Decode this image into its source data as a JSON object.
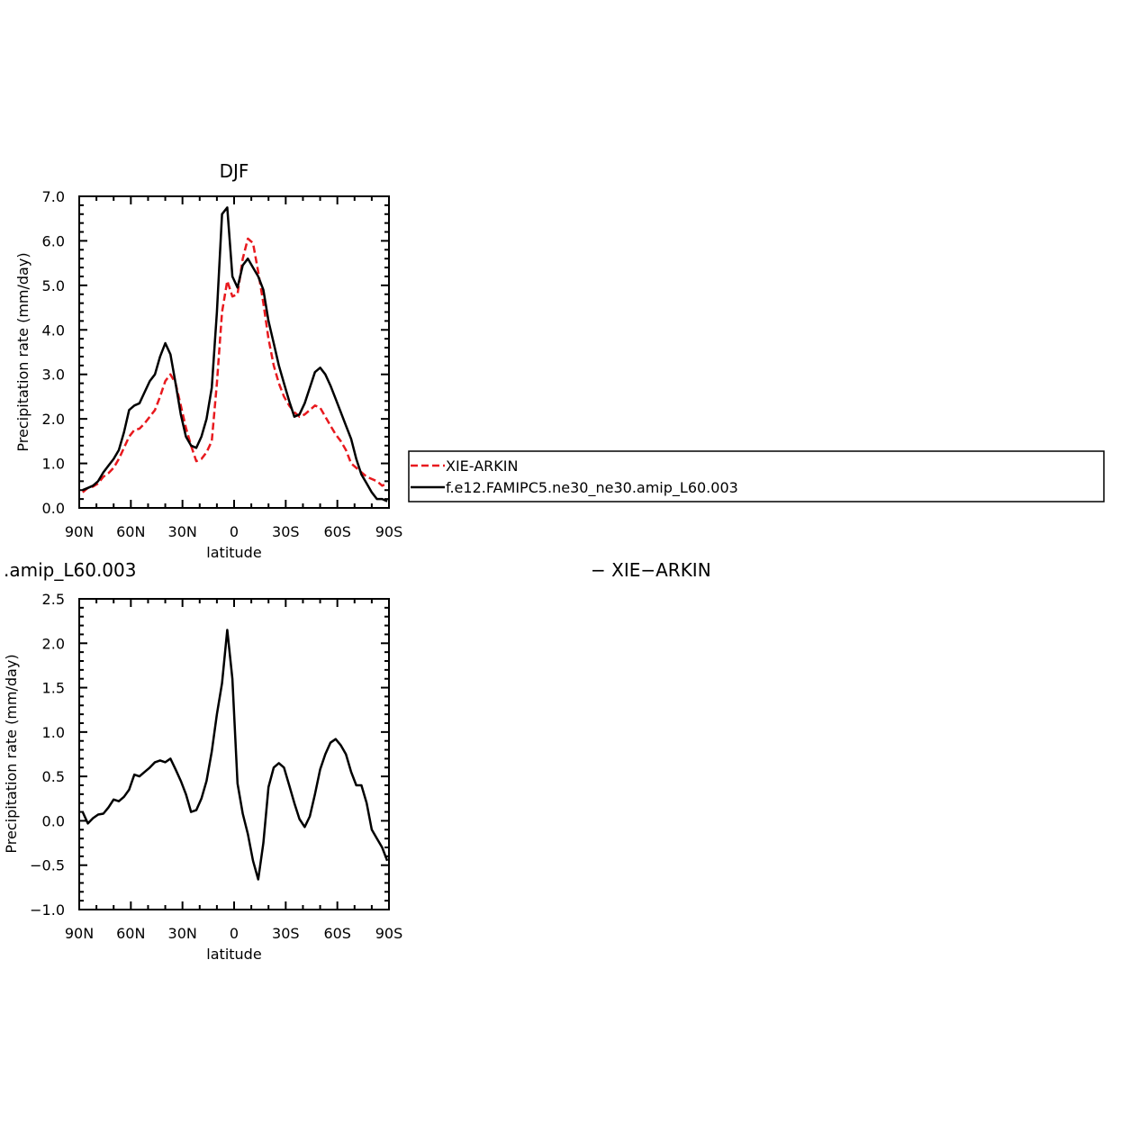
{
  "chart_data": [
    {
      "type": "line",
      "title": "DJF",
      "xlabel": "latitude",
      "ylabel": "Precipitation rate (mm/day)",
      "x_ticks": [
        "90N",
        "60N",
        "30N",
        "0",
        "30S",
        "60S",
        "90S"
      ],
      "y_ticks": [
        "0.0",
        "1.0",
        "2.0",
        "3.0",
        "4.0",
        "5.0",
        "6.0",
        "7.0"
      ],
      "xlim": [
        90,
        -90
      ],
      "ylim": [
        0,
        7
      ],
      "grid": false,
      "legend_position": "right",
      "series": [
        {
          "name": "XIE-ARKIN",
          "color": "#e8191e",
          "dash": "dashed",
          "x": [
            88,
            85,
            82,
            79,
            76,
            73,
            70,
            67,
            64,
            61,
            58,
            55,
            52,
            49,
            46,
            43,
            40,
            37,
            34,
            31,
            28,
            25,
            22,
            19,
            16,
            13,
            10,
            7,
            4,
            1,
            -2,
            -5,
            -8,
            -11,
            -14,
            -17,
            -20,
            -23,
            -26,
            -29,
            -32,
            -35,
            -38,
            -41,
            -44,
            -47,
            -50,
            -53,
            -56,
            -59,
            -62,
            -65,
            -68,
            -71,
            -74,
            -77,
            -80,
            -83,
            -86,
            -89
          ],
          "y": [
            0.35,
            0.45,
            0.48,
            0.55,
            0.7,
            0.78,
            0.9,
            1.1,
            1.35,
            1.6,
            1.75,
            1.78,
            1.9,
            2.05,
            2.2,
            2.5,
            2.85,
            3.0,
            2.8,
            2.3,
            1.8,
            1.4,
            1.05,
            1.1,
            1.25,
            1.5,
            2.8,
            4.4,
            5.1,
            4.75,
            4.8,
            5.6,
            6.05,
            5.95,
            5.3,
            4.6,
            3.8,
            3.2,
            2.8,
            2.5,
            2.3,
            2.15,
            2.05,
            2.1,
            2.2,
            2.3,
            2.25,
            2.05,
            1.85,
            1.65,
            1.5,
            1.3,
            1.0,
            0.9,
            0.8,
            0.7,
            0.65,
            0.6,
            0.5,
            0.55
          ]
        },
        {
          "name": "f.e12.FAMIPC5.ne30_ne30.amip_L60.003",
          "color": "#000000",
          "dash": "solid",
          "x": [
            88,
            85,
            82,
            79,
            76,
            73,
            70,
            67,
            64,
            61,
            58,
            55,
            52,
            49,
            46,
            43,
            40,
            37,
            34,
            31,
            28,
            25,
            22,
            19,
            16,
            13,
            10,
            7,
            4,
            1,
            -2,
            -5,
            -8,
            -11,
            -14,
            -17,
            -20,
            -23,
            -26,
            -29,
            -32,
            -35,
            -38,
            -41,
            -44,
            -47,
            -50,
            -53,
            -56,
            -59,
            -62,
            -65,
            -68,
            -71,
            -74,
            -77,
            -80,
            -83,
            -86,
            -89
          ],
          "y": [
            0.4,
            0.45,
            0.5,
            0.6,
            0.8,
            0.95,
            1.1,
            1.3,
            1.7,
            2.2,
            2.3,
            2.35,
            2.6,
            2.85,
            3.0,
            3.4,
            3.7,
            3.45,
            2.8,
            2.1,
            1.6,
            1.4,
            1.35,
            1.6,
            2.0,
            2.7,
            4.4,
            6.6,
            6.75,
            5.2,
            4.95,
            5.45,
            5.6,
            5.4,
            5.2,
            4.9,
            4.2,
            3.7,
            3.2,
            2.8,
            2.4,
            2.05,
            2.1,
            2.35,
            2.7,
            3.05,
            3.15,
            3.0,
            2.75,
            2.45,
            2.15,
            1.85,
            1.55,
            1.1,
            0.75,
            0.55,
            0.35,
            0.2,
            0.2,
            0.15
          ]
        }
      ]
    },
    {
      "type": "line",
      "title": ".amip_L60.003",
      "title_right": "− XIE−ARKIN",
      "xlabel": "latitude",
      "ylabel": "Precipitation rate (mm/day)",
      "x_ticks": [
        "90N",
        "60N",
        "30N",
        "0",
        "30S",
        "60S",
        "90S"
      ],
      "y_ticks": [
        "−1.0",
        "−0.5",
        "0.0",
        "0.5",
        "1.0",
        "1.5",
        "2.0",
        "2.5"
      ],
      "xlim": [
        90,
        -90
      ],
      "ylim": [
        -1.0,
        2.5
      ],
      "grid": false,
      "series": [
        {
          "name": "",
          "color": "#000000",
          "dash": "solid",
          "x": [
            88,
            85,
            82,
            79,
            76,
            73,
            70,
            67,
            64,
            61,
            58,
            55,
            52,
            49,
            46,
            43,
            40,
            37,
            34,
            31,
            28,
            25,
            22,
            19,
            16,
            13,
            10,
            7,
            4,
            1,
            -2,
            -5,
            -8,
            -11,
            -14,
            -17,
            -20,
            -23,
            -26,
            -29,
            -32,
            -35,
            -38,
            -41,
            -44,
            -47,
            -50,
            -53,
            -56,
            -59,
            -62,
            -65,
            -68,
            -71,
            -74,
            -77,
            -80,
            -83,
            -86,
            -89
          ],
          "y": [
            0.1,
            -0.03,
            0.03,
            0.07,
            0.08,
            0.15,
            0.24,
            0.22,
            0.27,
            0.35,
            0.52,
            0.5,
            0.55,
            0.6,
            0.66,
            0.68,
            0.66,
            0.7,
            0.58,
            0.45,
            0.3,
            0.1,
            0.12,
            0.25,
            0.45,
            0.78,
            1.2,
            1.55,
            2.15,
            1.6,
            0.42,
            0.08,
            -0.15,
            -0.45,
            -0.66,
            -0.25,
            0.38,
            0.6,
            0.65,
            0.6,
            0.4,
            0.2,
            0.02,
            -0.07,
            0.05,
            0.3,
            0.58,
            0.75,
            0.88,
            0.92,
            0.85,
            0.75,
            0.55,
            0.4,
            0.4,
            0.2,
            -0.1,
            -0.2,
            -0.3,
            -0.45
          ]
        }
      ]
    }
  ]
}
